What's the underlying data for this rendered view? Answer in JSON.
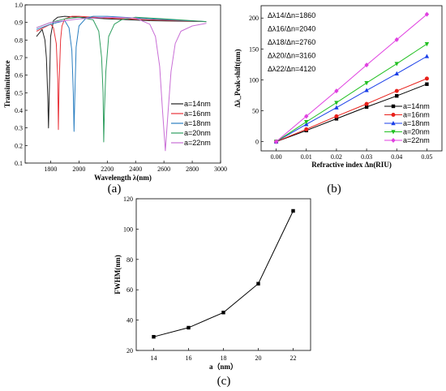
{
  "chart_data": [
    {
      "id": "a",
      "type": "line",
      "panel_label": "(a)",
      "xlabel": "Wavelength λ(nm)",
      "ylabel": "Transimittance",
      "xlim": [
        1620,
        3000
      ],
      "ylim": [
        0.1,
        1.0
      ],
      "xticks": [
        "1800",
        "2000",
        "2200",
        "2400",
        "2600",
        "2800",
        "3000"
      ],
      "yticks": [
        "0.1",
        "0.2",
        "0.3",
        "0.4",
        "0.5",
        "0.6",
        "0.7",
        "0.8",
        "0.9",
        "1.0"
      ],
      "legend_position": "bottom-right",
      "colors": [
        "#222222",
        "#e8333a",
        "#2b7fc1",
        "#2f9e5f",
        "#c96fd6"
      ],
      "series": [
        {
          "name": "a=14nm",
          "x": [
            1700,
            1720,
            1740,
            1760,
            1770,
            1780,
            1785,
            1790,
            1800,
            1820,
            1850,
            1900,
            2000,
            2200,
            2500,
            2900
          ],
          "values": [
            0.82,
            0.84,
            0.86,
            0.8,
            0.7,
            0.48,
            0.3,
            0.48,
            0.82,
            0.91,
            0.93,
            0.935,
            0.93,
            0.92,
            0.91,
            0.905
          ]
        },
        {
          "name": "a=16nm",
          "x": [
            1700,
            1750,
            1800,
            1820,
            1840,
            1850,
            1855,
            1860,
            1870,
            1880,
            1900,
            1950,
            2000,
            2200,
            2500,
            2900
          ],
          "values": [
            0.85,
            0.87,
            0.89,
            0.87,
            0.78,
            0.58,
            0.29,
            0.55,
            0.8,
            0.88,
            0.92,
            0.935,
            0.935,
            0.925,
            0.915,
            0.905
          ]
        },
        {
          "name": "a=18nm",
          "x": [
            1700,
            1800,
            1900,
            1930,
            1950,
            1960,
            1965,
            1970,
            1980,
            2000,
            2050,
            2100,
            2200,
            2500,
            2900
          ],
          "values": [
            0.86,
            0.89,
            0.91,
            0.87,
            0.74,
            0.5,
            0.28,
            0.45,
            0.76,
            0.88,
            0.925,
            0.935,
            0.935,
            0.92,
            0.905
          ]
        },
        {
          "name": "a=20nm",
          "x": [
            1700,
            1800,
            1900,
            2000,
            2100,
            2140,
            2160,
            2170,
            2175,
            2180,
            2190,
            2210,
            2250,
            2300,
            2400,
            2600,
            2900
          ],
          "values": [
            0.87,
            0.9,
            0.92,
            0.93,
            0.915,
            0.85,
            0.7,
            0.5,
            0.22,
            0.4,
            0.62,
            0.82,
            0.89,
            0.915,
            0.93,
            0.92,
            0.905
          ]
        },
        {
          "name": "a=22nm",
          "x": [
            1700,
            1800,
            2000,
            2200,
            2400,
            2500,
            2540,
            2570,
            2590,
            2610,
            2630,
            2650,
            2680,
            2720,
            2800,
            2900
          ],
          "values": [
            0.87,
            0.9,
            0.92,
            0.93,
            0.925,
            0.89,
            0.82,
            0.65,
            0.4,
            0.17,
            0.4,
            0.62,
            0.78,
            0.85,
            0.88,
            0.895
          ]
        }
      ]
    },
    {
      "id": "b",
      "type": "line",
      "panel_label": "(b)",
      "xlabel": "Refractive index Δn(RIU)",
      "ylabel": "Δλ_Peak-shift(nm)",
      "xlim": [
        -0.005,
        0.055
      ],
      "ylim": [
        -15,
        220
      ],
      "xticks": [
        "0.00",
        "0.01",
        "0.02",
        "0.03",
        "0.04",
        "0.05"
      ],
      "yticks": [
        "0",
        "50",
        "100",
        "150",
        "200"
      ],
      "legend_position": "bottom-right",
      "annotations": [
        "Δλ14/Δn=1860",
        "Δλ16/Δn=2040",
        "Δλ18/Δn=2760",
        "Δλ20/Δn=3160",
        "Δλ22/Δn=4120"
      ],
      "x": [
        0.0,
        0.01,
        0.02,
        0.03,
        0.04,
        0.05
      ],
      "series": [
        {
          "name": "a=14nm",
          "marker": "square",
          "color": "#000000",
          "values": [
            0,
            18,
            37,
            56,
            74,
            93
          ]
        },
        {
          "name": "a=16nm",
          "marker": "circle",
          "color": "#e8201a",
          "values": [
            0,
            20,
            41,
            61,
            82,
            102
          ]
        },
        {
          "name": "a=18nm",
          "marker": "triangle-up",
          "color": "#1a3fe8",
          "values": [
            0,
            28,
            55,
            83,
            110,
            138
          ]
        },
        {
          "name": "a=20nm",
          "marker": "triangle-down",
          "color": "#22c022",
          "values": [
            0,
            32,
            63,
            95,
            126,
            158
          ]
        },
        {
          "name": "a=22nm",
          "marker": "diamond",
          "color": "#e040e0",
          "values": [
            0,
            41,
            82,
            124,
            165,
            206
          ]
        }
      ]
    },
    {
      "id": "c",
      "type": "line",
      "panel_label": "(c)",
      "xlabel": "a（nm）",
      "ylabel": "FWHM(nm)",
      "xlim": [
        13,
        23
      ],
      "ylim": [
        20,
        120
      ],
      "xticks": [
        "14",
        "16",
        "18",
        "20",
        "22"
      ],
      "yticks": [
        "20",
        "40",
        "60",
        "80",
        "100",
        "120"
      ],
      "x": [
        14,
        16,
        18,
        20,
        22
      ],
      "series": [
        {
          "marker": "square",
          "color": "#000000",
          "values": [
            29,
            35,
            45,
            64,
            112
          ]
        }
      ]
    }
  ]
}
